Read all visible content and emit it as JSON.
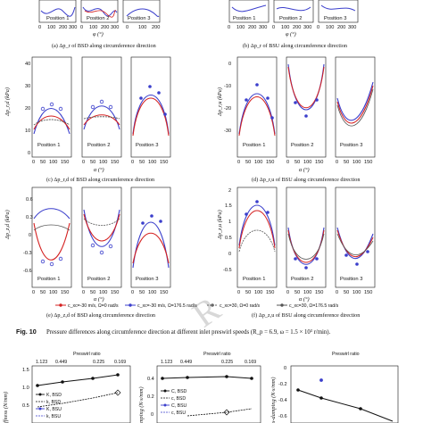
{
  "captions": {
    "a": "(a) Δp_r of BSD along circumference direction",
    "b": "(b) Δp_r of BSU along circumference direction",
    "c": "(c) Δp_r,d of BSD along circumference direction",
    "d": "(d) Δp_r,u of BSU along circumference direction",
    "e": "(e) Δp_z,d of BSD along circumference direction",
    "f": "(f) Δp_z,u of BSU along circumference direction"
  },
  "positions": [
    "Position 1",
    "Position 2",
    "Position 3"
  ],
  "axis_labels": {
    "phi": "φ (°)",
    "alpha": "α (°)",
    "ylabel_c": "Δp_r,d (kPa)",
    "ylabel_d": "Δp_r,u (kPa)",
    "ylabel_e": "Δp_z,d (kPa)",
    "ylabel_f": "Δp_z,u (kPa)"
  },
  "legend": [
    {
      "label": "c_xc=-30 m/s, Ω=0 rad/s",
      "color": "#d42020"
    },
    {
      "label": "c_xc=-30 m/s, Ω=176.5 rad/s",
      "color": "#3b3fcc"
    },
    {
      "label": "c_xc=30, Ω=0 rad/s",
      "color": "#666666"
    },
    {
      "label": "c_xc=30, Ω=176.5 rad/s",
      "color": "#555555"
    }
  ],
  "figure10": {
    "label": "Fig. 10",
    "text": "Pressure differences along circumference direction at different inlet preswirl speeds (R_p = 6.9, ω = 1.5 × 10³ r/min)."
  },
  "bottom": {
    "top_axis_title": "Preswirl ratio",
    "top_ticks_left": [
      "1.123",
      "0.449",
      "0.225",
      "0.169"
    ],
    "top_ticks_mid": [
      "1.123",
      "0.449",
      "0.225",
      "0.169"
    ],
    "legend_left": [
      "K, BSD",
      "k, BSD",
      "K, BSU",
      "k, BSU"
    ],
    "legend_mid": [
      "C, BSD",
      "c, BSD",
      "C, BSU",
      "c, BSU"
    ],
    "ylabel_left": "ffness (N/mm)",
    "ylabel_mid": "mping (N·s/mm)",
    "ylabel_right": "s-damping (N·s/mm)",
    "yticks_left": [
      "1.5",
      "1.0",
      "0.5",
      "0"
    ],
    "yticks_mid": [
      "0.4",
      "0.2",
      "0"
    ],
    "yticks_right": [
      "0",
      "-0.2",
      "-0.4",
      "-0.6"
    ]
  },
  "colors": {
    "red": "#d42020",
    "blue": "#3b3fcc",
    "gray": "#555555",
    "black": "#111111"
  }
}
